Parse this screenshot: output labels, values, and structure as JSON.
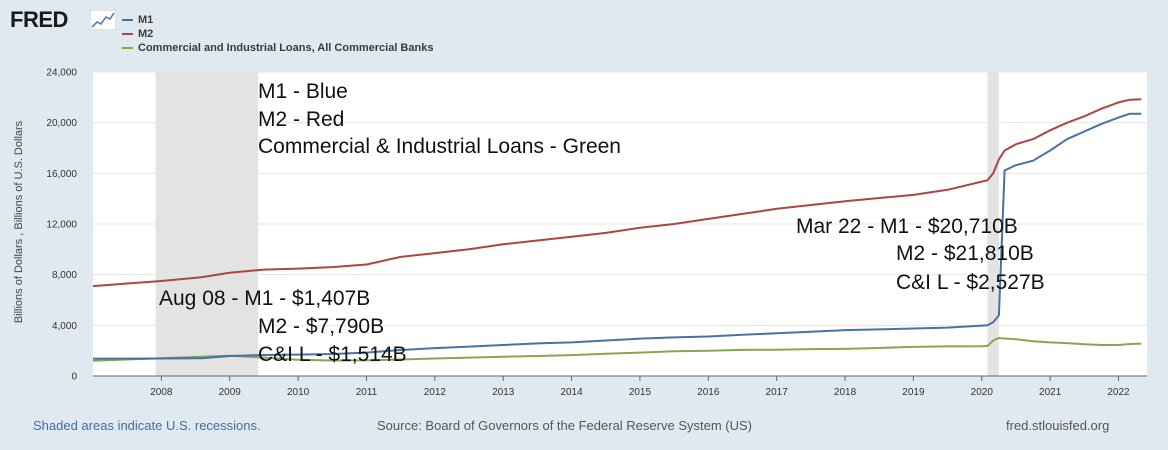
{
  "header": {
    "logo_text": "FRED",
    "logo_icon": "sparkline-icon"
  },
  "footer": {
    "recession_note": "Shaded areas indicate U.S. recessions.",
    "source": "Source: Board of Governors of the Federal Reserve System (US)",
    "site": "fred.stlouisfed.org"
  },
  "chart_data": {
    "type": "line",
    "title": "",
    "ylabel": "Billions of Dollars , Billions of U.S. Dollars",
    "xlabel": "",
    "ylim": [
      0,
      24000
    ],
    "xlim": [
      "2007-01",
      "2022-06"
    ],
    "grid": true,
    "yticks": [
      0,
      4000,
      8000,
      12000,
      16000,
      20000,
      24000
    ],
    "ytick_labels": [
      "0",
      "4,000",
      "8,000",
      "12,000",
      "16,000",
      "20,000",
      "24,000"
    ],
    "xticks": [
      2008,
      2009,
      2010,
      2011,
      2012,
      2013,
      2014,
      2015,
      2016,
      2017,
      2018,
      2019,
      2020,
      2021,
      2022
    ],
    "xtick_labels": [
      "2008",
      "2009",
      "2010",
      "2011",
      "2012",
      "2013",
      "2014",
      "2015",
      "2016",
      "2017",
      "2018",
      "2019",
      "2020",
      "2021",
      "2022"
    ],
    "recessions": [
      {
        "start": "2007-12",
        "end": "2009-06"
      },
      {
        "start": "2020-02",
        "end": "2020-04"
      }
    ],
    "legend_position": "top-left",
    "series": [
      {
        "name": "M1",
        "color": "#4572a7",
        "points": [
          [
            "2007-01",
            1370
          ],
          [
            "2007-07",
            1370
          ],
          [
            "2008-01",
            1380
          ],
          [
            "2008-07",
            1400
          ],
          [
            "2008-08",
            1407
          ],
          [
            "2009-01",
            1580
          ],
          [
            "2009-07",
            1660
          ],
          [
            "2010-01",
            1690
          ],
          [
            "2010-07",
            1740
          ],
          [
            "2011-01",
            1850
          ],
          [
            "2011-07",
            2050
          ],
          [
            "2012-01",
            2200
          ],
          [
            "2012-07",
            2320
          ],
          [
            "2013-01",
            2450
          ],
          [
            "2013-07",
            2570
          ],
          [
            "2014-01",
            2650
          ],
          [
            "2014-07",
            2800
          ],
          [
            "2015-01",
            2950
          ],
          [
            "2015-07",
            3050
          ],
          [
            "2016-01",
            3120
          ],
          [
            "2016-07",
            3250
          ],
          [
            "2017-01",
            3380
          ],
          [
            "2017-07",
            3500
          ],
          [
            "2018-01",
            3620
          ],
          [
            "2018-07",
            3680
          ],
          [
            "2019-01",
            3750
          ],
          [
            "2019-07",
            3820
          ],
          [
            "2020-01",
            3980
          ],
          [
            "2020-02",
            4000
          ],
          [
            "2020-03",
            4250
          ],
          [
            "2020-04",
            4800
          ],
          [
            "2020-05",
            16230
          ],
          [
            "2020-07",
            16650
          ],
          [
            "2020-10",
            17000
          ],
          [
            "2021-01",
            17800
          ],
          [
            "2021-04",
            18700
          ],
          [
            "2021-07",
            19300
          ],
          [
            "2021-10",
            19900
          ],
          [
            "2022-01",
            20400
          ],
          [
            "2022-03",
            20710
          ],
          [
            "2022-05",
            20700
          ]
        ]
      },
      {
        "name": "M2",
        "color": "#aa4643",
        "points": [
          [
            "2007-01",
            7100
          ],
          [
            "2007-07",
            7300
          ],
          [
            "2008-01",
            7500
          ],
          [
            "2008-08",
            7790
          ],
          [
            "2009-01",
            8150
          ],
          [
            "2009-07",
            8400
          ],
          [
            "2010-01",
            8480
          ],
          [
            "2010-07",
            8600
          ],
          [
            "2011-01",
            8800
          ],
          [
            "2011-07",
            9400
          ],
          [
            "2012-01",
            9700
          ],
          [
            "2012-07",
            10000
          ],
          [
            "2013-01",
            10400
          ],
          [
            "2013-07",
            10700
          ],
          [
            "2014-01",
            11000
          ],
          [
            "2014-07",
            11300
          ],
          [
            "2015-01",
            11700
          ],
          [
            "2015-07",
            12000
          ],
          [
            "2016-01",
            12400
          ],
          [
            "2016-07",
            12800
          ],
          [
            "2017-01",
            13200
          ],
          [
            "2017-07",
            13500
          ],
          [
            "2018-01",
            13800
          ],
          [
            "2018-07",
            14050
          ],
          [
            "2019-01",
            14300
          ],
          [
            "2019-07",
            14700
          ],
          [
            "2020-01",
            15350
          ],
          [
            "2020-02",
            15450
          ],
          [
            "2020-03",
            16000
          ],
          [
            "2020-04",
            17100
          ],
          [
            "2020-05",
            17800
          ],
          [
            "2020-07",
            18300
          ],
          [
            "2020-10",
            18700
          ],
          [
            "2021-01",
            19400
          ],
          [
            "2021-04",
            20000
          ],
          [
            "2021-07",
            20500
          ],
          [
            "2021-10",
            21100
          ],
          [
            "2022-01",
            21600
          ],
          [
            "2022-03",
            21810
          ],
          [
            "2022-05",
            21850
          ]
        ]
      },
      {
        "name": "Commercial and Industrial Loans, All Commercial Banks",
        "color": "#89a54e",
        "points": [
          [
            "2007-01",
            1200
          ],
          [
            "2007-07",
            1300
          ],
          [
            "2008-01",
            1400
          ],
          [
            "2008-08",
            1514
          ],
          [
            "2009-01",
            1600
          ],
          [
            "2009-07",
            1450
          ],
          [
            "2010-01",
            1280
          ],
          [
            "2010-07",
            1220
          ],
          [
            "2011-01",
            1230
          ],
          [
            "2011-07",
            1300
          ],
          [
            "2012-01",
            1380
          ],
          [
            "2012-07",
            1450
          ],
          [
            "2013-01",
            1520
          ],
          [
            "2013-07",
            1580
          ],
          [
            "2014-01",
            1650
          ],
          [
            "2014-07",
            1750
          ],
          [
            "2015-01",
            1850
          ],
          [
            "2015-07",
            1950
          ],
          [
            "2016-01",
            2000
          ],
          [
            "2016-07",
            2060
          ],
          [
            "2017-01",
            2080
          ],
          [
            "2017-07",
            2120
          ],
          [
            "2018-01",
            2140
          ],
          [
            "2018-07",
            2210
          ],
          [
            "2019-01",
            2300
          ],
          [
            "2019-07",
            2340
          ],
          [
            "2020-01",
            2350
          ],
          [
            "2020-02",
            2380
          ],
          [
            "2020-03",
            2800
          ],
          [
            "2020-04",
            3000
          ],
          [
            "2020-05",
            2960
          ],
          [
            "2020-07",
            2900
          ],
          [
            "2020-10",
            2750
          ],
          [
            "2021-01",
            2650
          ],
          [
            "2021-04",
            2600
          ],
          [
            "2021-07",
            2500
          ],
          [
            "2021-10",
            2450
          ],
          [
            "2022-01",
            2450
          ],
          [
            "2022-03",
            2527
          ],
          [
            "2022-05",
            2560
          ]
        ]
      }
    ],
    "annotations": [
      {
        "id": "top",
        "lines": [
          "M1 - Blue",
          "M2 - Red",
          "Commercial & Industrial Loans - Green"
        ]
      },
      {
        "id": "aug08",
        "lines": [
          "Aug 08 - M1 - $1,407B",
          "M2 - $7,790B",
          "C&I L - $1,514B"
        ]
      },
      {
        "id": "mar22",
        "lines": [
          "Mar 22 - M1 - $20,710B",
          "M2 - $21,810B",
          "C&I L - $2,527B"
        ]
      }
    ]
  }
}
